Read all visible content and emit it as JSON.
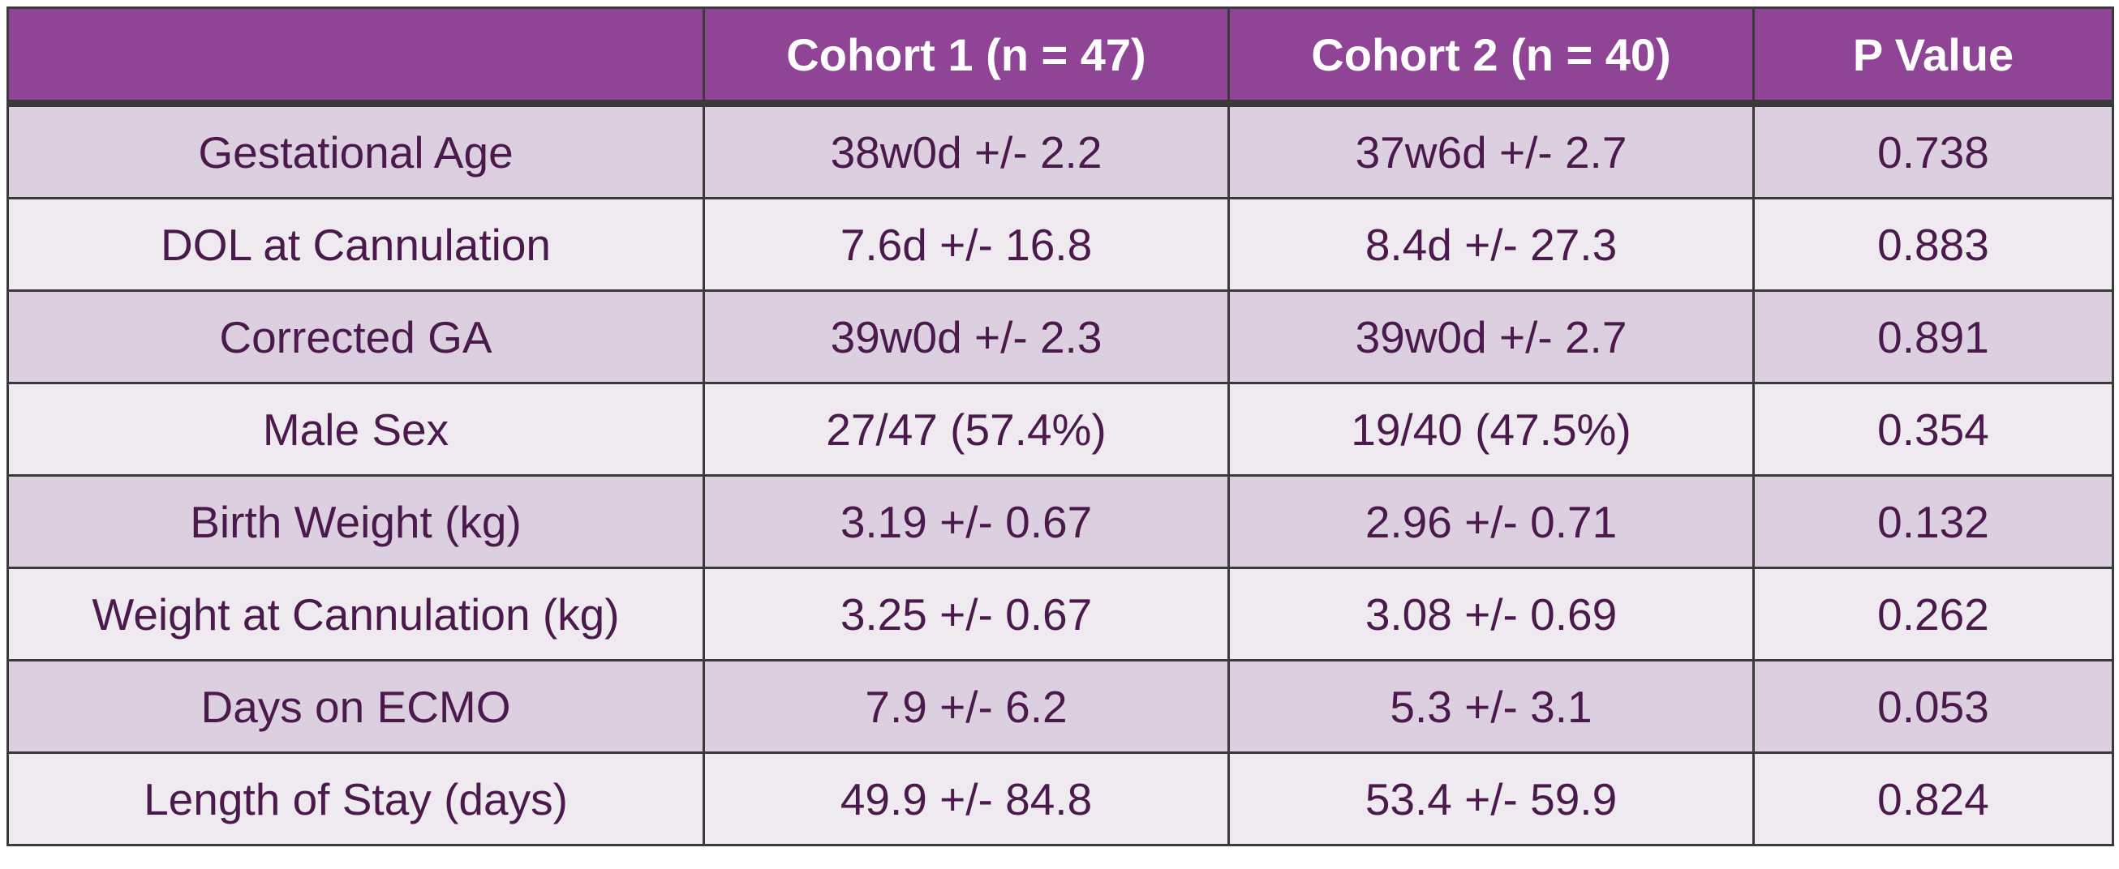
{
  "table": {
    "columns": [
      "Cohort 1 (n = 47)",
      "Cohort 2 (n = 40)",
      "P Value"
    ],
    "rows": [
      [
        "Gestational Age",
        "38w0d +/- 2.2",
        "37w6d +/- 2.7",
        "0.738"
      ],
      [
        "DOL at Cannulation",
        "7.6d +/- 16.8",
        "8.4d +/- 27.3",
        "0.883"
      ],
      [
        "Corrected GA",
        "39w0d +/- 2.3",
        "39w0d +/- 2.7",
        "0.891"
      ],
      [
        "Male Sex",
        "27/47 (57.4%)",
        "19/40 (47.5%)",
        "0.354"
      ],
      [
        "Birth Weight (kg)",
        "3.19 +/- 0.67",
        "2.96 +/- 0.71",
        "0.132"
      ],
      [
        "Weight at Cannulation (kg)",
        "3.25 +/- 0.67",
        "3.08 +/- 0.69",
        "0.262"
      ],
      [
        "Days on ECMO",
        "7.9 +/- 6.2",
        "5.3 +/- 3.1",
        "0.053"
      ],
      [
        "Length of Stay (days)",
        "49.9 +/- 84.8",
        "53.4 +/- 59.9",
        "0.824"
      ]
    ]
  }
}
